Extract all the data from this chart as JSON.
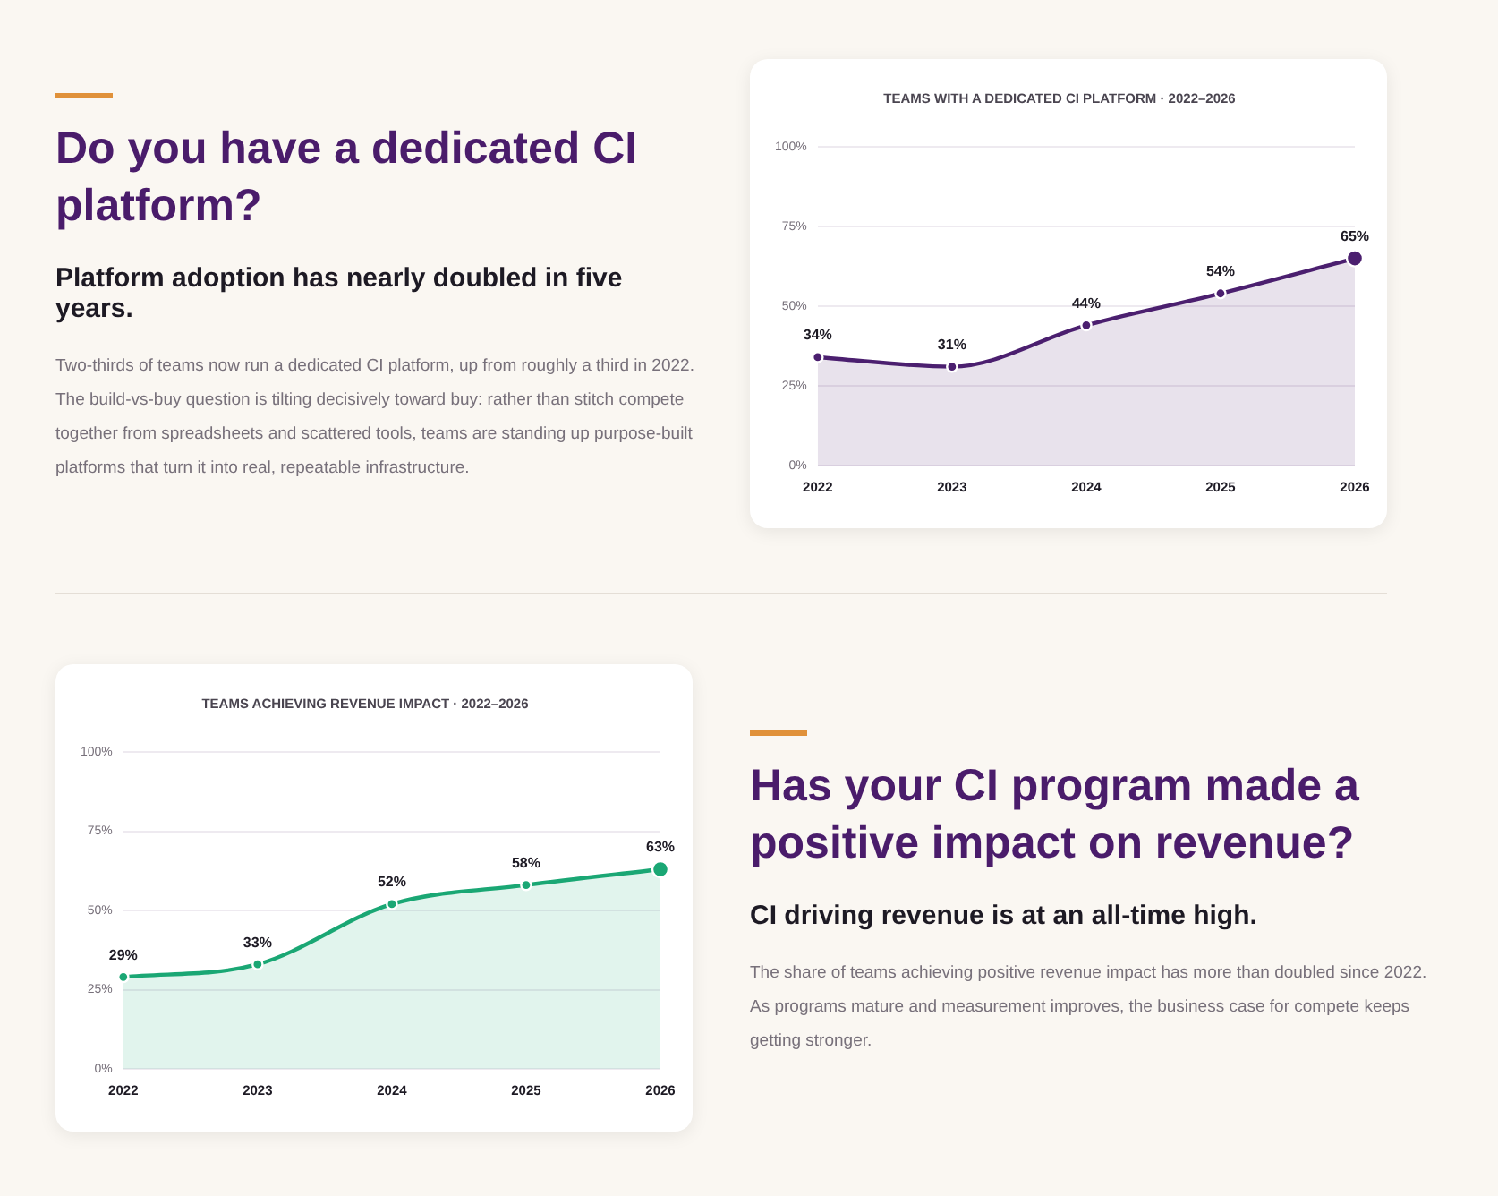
{
  "chart_data": [
    {
      "type": "other",
      "title": "Do you have a dedicated CI platform?",
      "subtitle": "Platform adoption has nearly doubled in five years.",
      "annotations": [
        "Two-thirds of teams now run a dedicated CI platform, up from roughly a third in 2022. The build-vs-buy question is tilting decisively toward buy: rather than stitch compete together from spreadsheets and scattered tools, teams are standing up purpose-built platforms that turn it into real, repeatable infrastructure."
      ]
    },
    {
      "type": "area",
      "title": "TEAMS WITH A DEDICATED CI PLATFORM · 2022–2026",
      "categories": [
        "2022",
        "2023",
        "2024",
        "2025",
        "2026"
      ],
      "series": [
        {
          "color": "#4b1f6f",
          "values": [
            34,
            31,
            44,
            54,
            65
          ],
          "value_labels": [
            "34%",
            "31%",
            "44%",
            "54%",
            "65%"
          ]
        }
      ],
      "ylim": [
        0,
        100
      ],
      "yticks": [
        {
          "value": 0,
          "label": "0%"
        },
        {
          "value": 25,
          "label": "25%"
        },
        {
          "value": 50,
          "label": "50%"
        },
        {
          "value": 75,
          "label": "75%"
        },
        {
          "value": 100,
          "label": "100%"
        }
      ],
      "grid": "y",
      "marker": "circle",
      "legend": false
    },
    {
      "type": "area",
      "title": "TEAMS ACHIEVING REVENUE IMPACT · 2022–2026",
      "categories": [
        "2022",
        "2023",
        "2024",
        "2025",
        "2026"
      ],
      "series": [
        {
          "color": "#1aa774",
          "values": [
            29,
            33,
            52,
            58,
            63
          ],
          "value_labels": [
            "29%",
            "33%",
            "52%",
            "58%",
            "63%"
          ]
        }
      ],
      "ylim": [
        0,
        100
      ],
      "yticks": [
        {
          "value": 0,
          "label": "0%"
        },
        {
          "value": 25,
          "label": "25%"
        },
        {
          "value": 50,
          "label": "50%"
        },
        {
          "value": 75,
          "label": "75%"
        },
        {
          "value": 100,
          "label": "100%"
        }
      ],
      "grid": "y",
      "marker": "circle",
      "legend": false
    },
    {
      "type": "other",
      "title": "Has your CI program made a positive impact on revenue?",
      "subtitle": "CI driving revenue is at an all-time high.",
      "annotations": [
        "The share of teams achieving positive revenue impact has more than doubled since 2022. As programs mature and measurement improves, the business case for compete keeps getting stronger."
      ]
    }
  ]
}
